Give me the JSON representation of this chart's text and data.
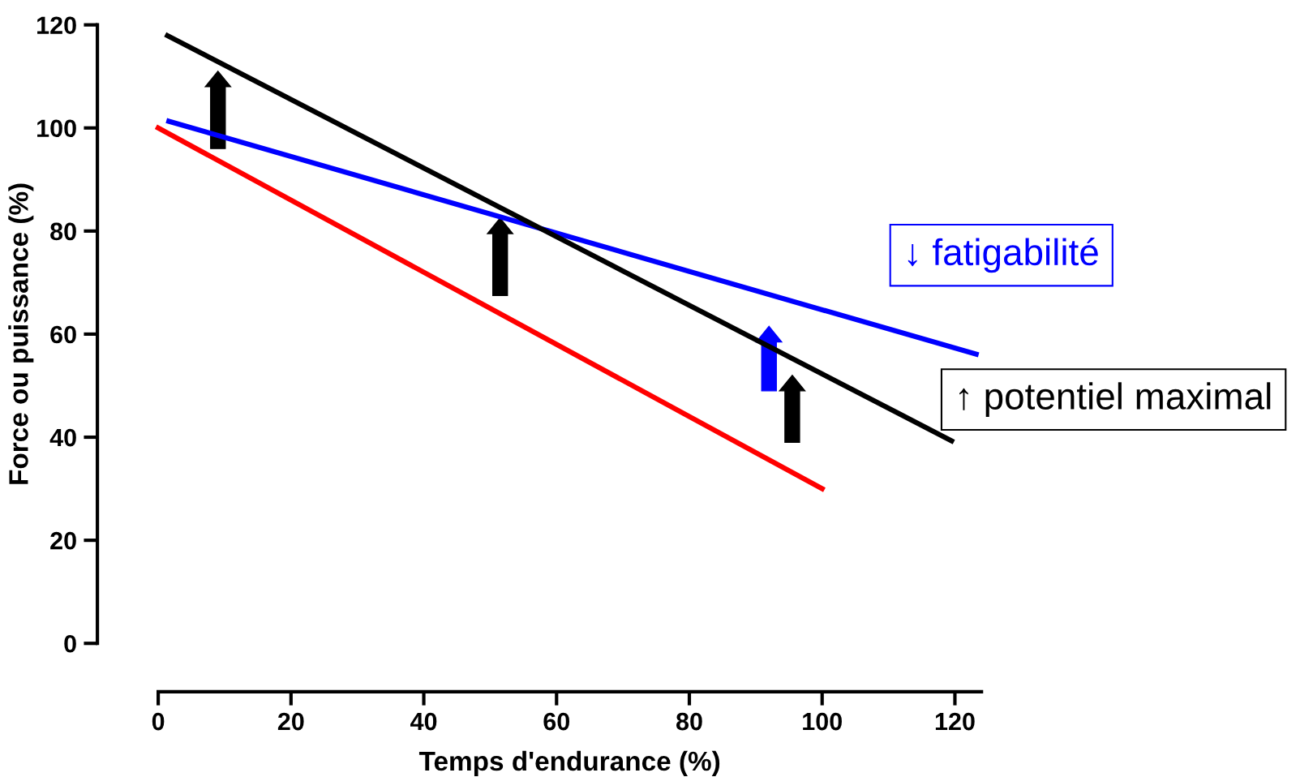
{
  "chart_data": {
    "type": "line",
    "xlabel": "Temps d'endurance (%)",
    "ylabel": "Force ou puissance (%)",
    "xlim": [
      0,
      124
    ],
    "ylim": [
      0,
      120
    ],
    "xticks": [
      0,
      20,
      40,
      60,
      80,
      100,
      120
    ],
    "yticks": [
      0,
      20,
      40,
      60,
      80,
      100,
      120
    ],
    "grid": false,
    "marker": "none",
    "line_style": "solid",
    "series": [
      {
        "color": "#ff0000",
        "x": [
          0,
          100
        ],
        "values": [
          100,
          30
        ]
      },
      {
        "color": "#0000ff",
        "x": [
          1.6,
          123.2
        ],
        "values": [
          101.3,
          56.1
        ]
      },
      {
        "color": "#000000",
        "x": [
          1.4,
          119.5
        ],
        "values": [
          117.9,
          39.3
        ]
      }
    ],
    "annotations": [
      "↓ fatigabilité",
      "↑ potentiel maximal"
    ]
  }
}
